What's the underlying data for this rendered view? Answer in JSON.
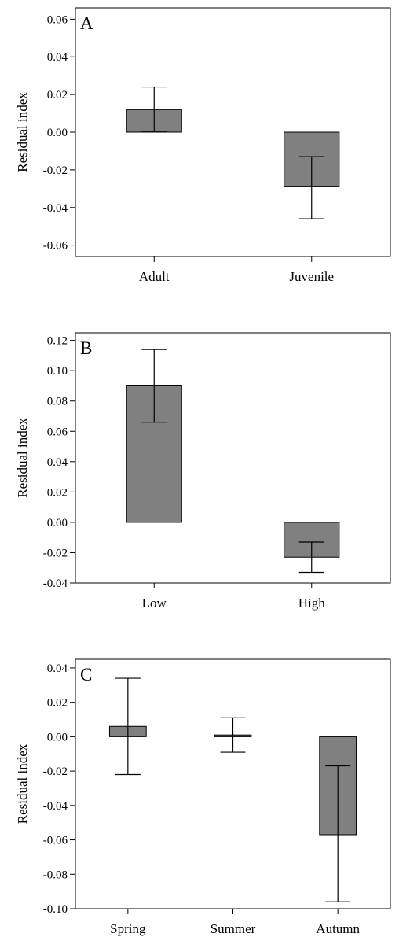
{
  "colors": {
    "bar_fill": "#808080",
    "stroke": "#000000",
    "background": "#ffffff"
  },
  "chart_data": [
    {
      "type": "bar",
      "panel_label": "A",
      "ylabel": "Residual index",
      "xlabel": "",
      "categories": [
        "Adult",
        "Juvenile"
      ],
      "values": [
        0.012,
        -0.029
      ],
      "error_low": [
        0.0005,
        -0.046
      ],
      "error_high": [
        0.024,
        -0.013
      ],
      "ylim": [
        -0.066,
        0.066
      ],
      "yticks": [
        -0.06,
        -0.04,
        -0.02,
        0.0,
        0.02,
        0.04,
        0.06
      ],
      "ytick_labels": [
        "-0.06",
        "-0.04",
        "-0.02",
        "0.00",
        "0.02",
        "0.04",
        "0.06"
      ],
      "grid": false
    },
    {
      "type": "bar",
      "panel_label": "B",
      "ylabel": "Residual index",
      "xlabel": "",
      "categories": [
        "Low",
        "High"
      ],
      "values": [
        0.09,
        -0.023
      ],
      "error_low": [
        0.066,
        -0.033
      ],
      "error_high": [
        0.114,
        -0.013
      ],
      "ylim": [
        -0.04,
        0.125
      ],
      "yticks": [
        -0.04,
        -0.02,
        0.0,
        0.02,
        0.04,
        0.06,
        0.08,
        0.1,
        0.12
      ],
      "ytick_labels": [
        "-0.04",
        "-0.02",
        "0.00",
        "0.02",
        "0.04",
        "0.06",
        "0.08",
        "0.10",
        "0.12"
      ],
      "grid": false
    },
    {
      "type": "bar",
      "panel_label": "C",
      "ylabel": "Residual index",
      "xlabel": "",
      "categories": [
        "Spring",
        "Summer",
        "Autumn"
      ],
      "values": [
        0.006,
        0.001,
        -0.057
      ],
      "error_low": [
        -0.022,
        -0.009,
        -0.096
      ],
      "error_high": [
        0.034,
        0.011,
        -0.017
      ],
      "ylim": [
        -0.1,
        0.045
      ],
      "yticks": [
        -0.1,
        -0.08,
        -0.06,
        -0.04,
        -0.02,
        0.0,
        0.02,
        0.04
      ],
      "ytick_labels": [
        "-0.10",
        "-0.08",
        "-0.06",
        "-0.04",
        "-0.02",
        "0.00",
        "0.02",
        "0.04"
      ],
      "grid": false
    }
  ]
}
